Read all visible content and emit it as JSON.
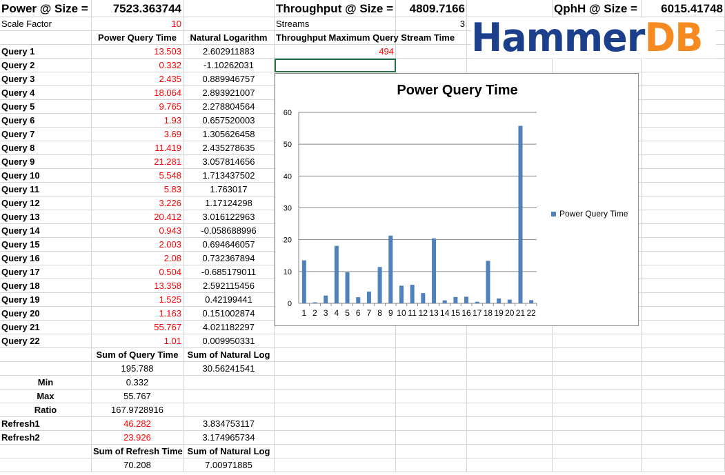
{
  "header": {
    "power_label": "Power @ Size =",
    "power_value": "7523.363744",
    "throughput_label": "Throughput @ Size =",
    "throughput_value": "4809.7166",
    "qphh_label": "QphH @ Size =",
    "qphh_value": "6015.41748"
  },
  "row2": {
    "scale_factor_label": "Scale Factor",
    "scale_factor_value": "10",
    "streams_label": "Streams",
    "streams_value": "3"
  },
  "columns": {
    "power_query_time": "Power Query Time",
    "natural_logarithm": "Natural Logarithm",
    "throughput_max": "Throughput Maximum Query Stream Time",
    "throughput_max_value": "494"
  },
  "queries": [
    {
      "label": "Query 1",
      "time": "13.503",
      "ln": "2.602911883"
    },
    {
      "label": "Query 2",
      "time": "0.332",
      "ln": "-1.10262031"
    },
    {
      "label": "Query 3",
      "time": "2.435",
      "ln": "0.889946757"
    },
    {
      "label": "Query 4",
      "time": "18.064",
      "ln": "2.893921007"
    },
    {
      "label": "Query 5",
      "time": "9.765",
      "ln": "2.278804564"
    },
    {
      "label": "Query 6",
      "time": "1.93",
      "ln": "0.657520003"
    },
    {
      "label": "Query 7",
      "time": "3.69",
      "ln": "1.305626458"
    },
    {
      "label": "Query 8",
      "time": "11.419",
      "ln": "2.435278635"
    },
    {
      "label": "Query 9",
      "time": "21.281",
      "ln": "3.057814656"
    },
    {
      "label": "Query 10",
      "time": "5.548",
      "ln": "1.713437502"
    },
    {
      "label": "Query 11",
      "time": "5.83",
      "ln": "1.763017"
    },
    {
      "label": "Query 12",
      "time": "3.226",
      "ln": "1.17124298"
    },
    {
      "label": "Query 13",
      "time": "20.412",
      "ln": "3.016122963"
    },
    {
      "label": "Query 14",
      "time": "0.943",
      "ln": "-0.058688996"
    },
    {
      "label": "Query 15",
      "time": "2.003",
      "ln": "0.694646057"
    },
    {
      "label": "Query 16",
      "time": "2.08",
      "ln": "0.732367894"
    },
    {
      "label": "Query 17",
      "time": "0.504",
      "ln": "-0.685179011"
    },
    {
      "label": "Query 18",
      "time": "13.358",
      "ln": "2.592115456"
    },
    {
      "label": "Query 19",
      "time": "1.525",
      "ln": "0.42199441"
    },
    {
      "label": "Query 20",
      "time": "1.163",
      "ln": "0.151002874"
    },
    {
      "label": "Query 21",
      "time": "55.767",
      "ln": "4.021182297"
    },
    {
      "label": "Query 22",
      "time": "1.01",
      "ln": "0.009950331"
    }
  ],
  "summary": {
    "sum_query_time_label": "Sum of Query Time",
    "sum_natural_log_label": "Sum of Natural Log",
    "sum_query_time": "195.788",
    "sum_natural_log": "30.56241541",
    "min_label": "Min",
    "min_value": "0.332",
    "max_label": "Max",
    "max_value": "55.767",
    "ratio_label": "Ratio",
    "ratio_value": "167.9728916",
    "refresh1_label": "Refresh1",
    "refresh1_time": "46.282",
    "refresh1_ln": "3.834753117",
    "refresh2_label": "Refresh2",
    "refresh2_time": "23.926",
    "refresh2_ln": "3.174965734",
    "sum_refresh_time_label": "Sum of Refresh Time",
    "sum_natural_log2_label": "Sum of Natural Log",
    "sum_refresh_time": "70.208",
    "sum_natural_log2": "7.00971885"
  },
  "logo": {
    "part1": "Hammer",
    "part2": "DB"
  },
  "colors": {
    "red_text": "#ff0000",
    "bar": "#4f81bd",
    "logo_blue": "#1c3f8c",
    "logo_orange": "#f58a21",
    "gridline": "#d4d4d4",
    "selection": "#217346"
  },
  "chart_data": {
    "type": "bar",
    "title": "Power Query Time",
    "categories": [
      "1",
      "2",
      "3",
      "4",
      "5",
      "6",
      "7",
      "8",
      "9",
      "10",
      "11",
      "12",
      "13",
      "14",
      "15",
      "16",
      "17",
      "18",
      "19",
      "20",
      "21",
      "22"
    ],
    "series": [
      {
        "name": "Power Query Time",
        "values": [
          13.503,
          0.332,
          2.435,
          18.064,
          9.765,
          1.93,
          3.69,
          11.419,
          21.281,
          5.548,
          5.83,
          3.226,
          20.412,
          0.943,
          2.003,
          2.08,
          0.504,
          13.358,
          1.525,
          1.163,
          55.767,
          1.01
        ]
      }
    ],
    "ylim": [
      0,
      60
    ],
    "yticks": [
      0,
      10,
      20,
      30,
      40,
      50,
      60
    ],
    "grid": true,
    "legend": "right"
  }
}
